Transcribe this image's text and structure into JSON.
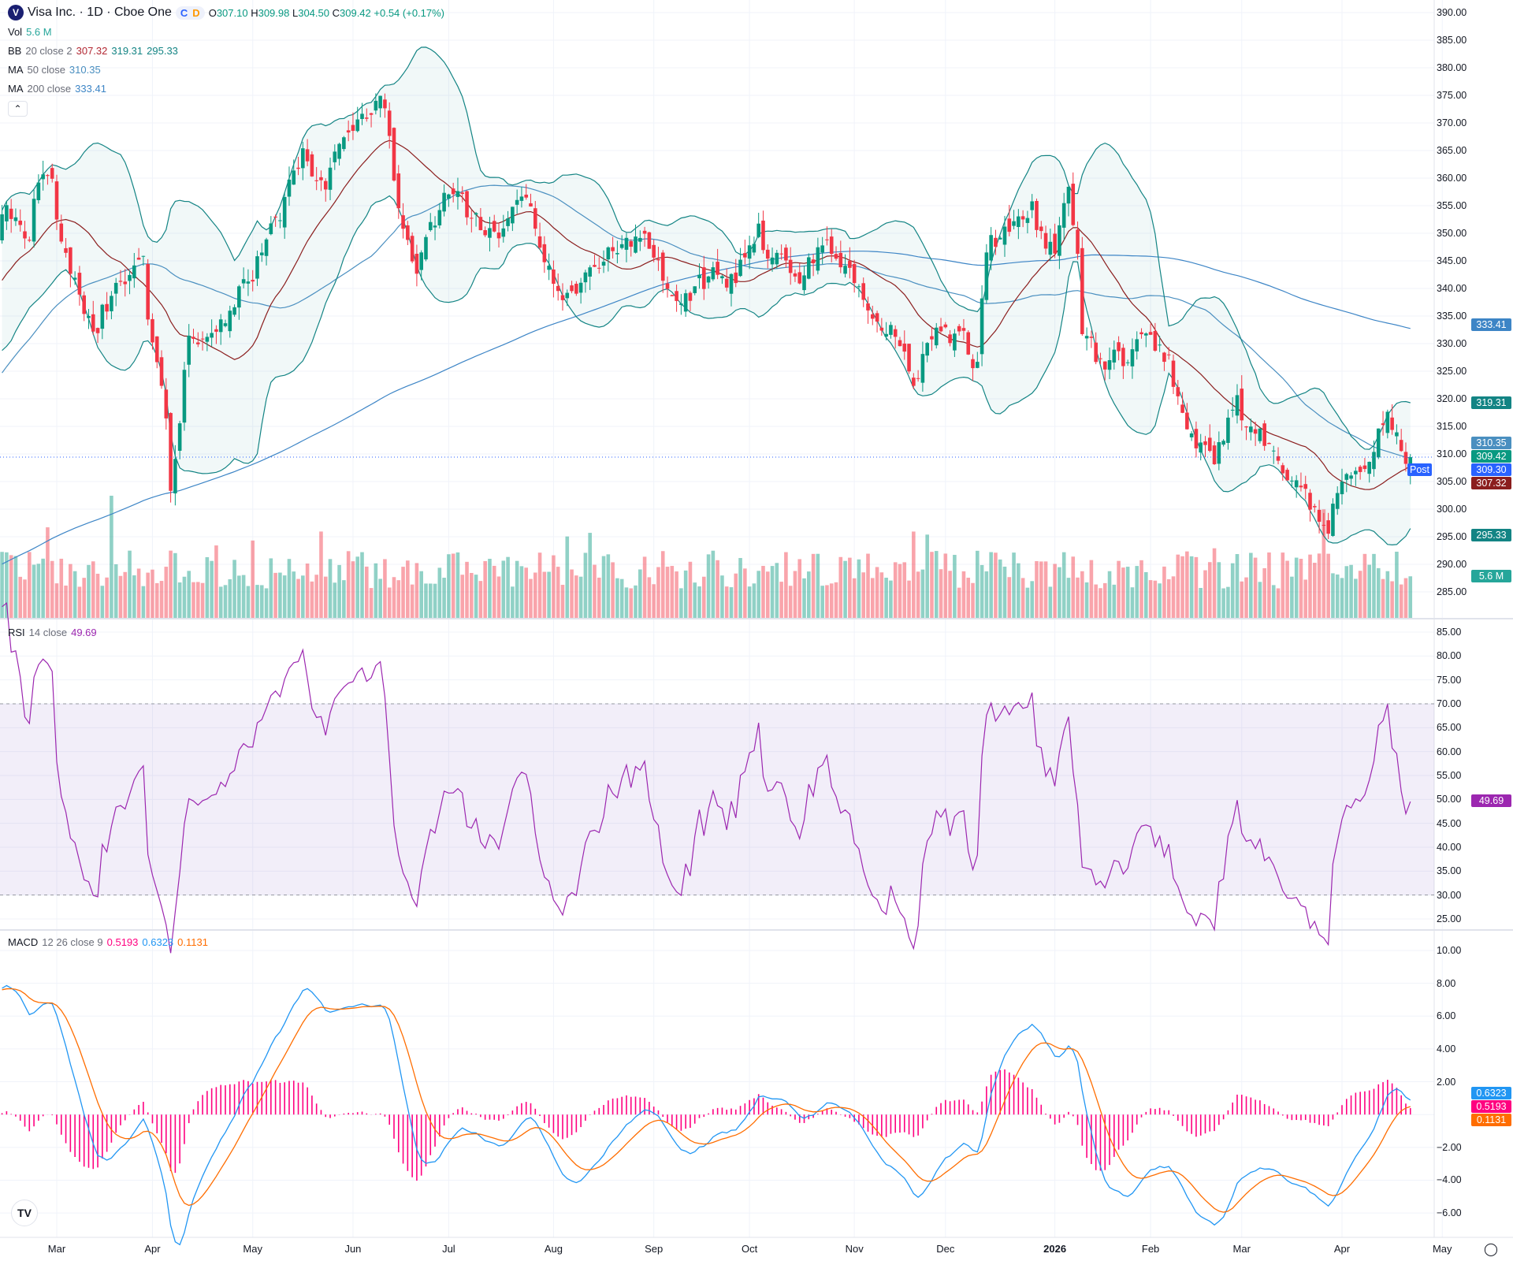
{
  "header": {
    "logo_letter": "V",
    "title": "Visa Inc. · 1D · Cboe One",
    "session_icons": [
      "C",
      "D"
    ],
    "ohlc": {
      "o_label": "O",
      "open": "307.10",
      "h_label": "H",
      "high": "309.98",
      "l_label": "L",
      "low": "304.50",
      "c_label": "C",
      "close": "309.42",
      "change": "+0.54 (+0.17%)"
    }
  },
  "legend": {
    "vol": {
      "name": "Vol",
      "value": "5.6 M"
    },
    "bb": {
      "name": "BB",
      "params": "20 close 2",
      "basis": "307.32",
      "upper": "319.31",
      "lower": "295.33"
    },
    "ma50": {
      "name": "MA",
      "params": "50 close",
      "value": "310.35"
    },
    "ma200": {
      "name": "MA",
      "params": "200 close",
      "value": "333.41"
    },
    "collapse_icon": "chevron-up",
    "rsi": {
      "name": "RSI",
      "params": "14 close",
      "value": "49.69"
    },
    "macd": {
      "name": "MACD",
      "params": "12 26 close 9",
      "hist": "0.5193",
      "macd": "0.6323",
      "signal": "0.1131"
    }
  },
  "axes": {
    "price_ticks": [
      "390.00",
      "385.00",
      "380.00",
      "375.00",
      "370.00",
      "365.00",
      "360.00",
      "355.00",
      "350.00",
      "345.00",
      "340.00",
      "335.00",
      "330.00",
      "325.00",
      "320.00",
      "315.00",
      "310.00",
      "305.00",
      "300.00",
      "295.00",
      "290.00",
      "285.00"
    ],
    "rsi_ticks": [
      "85.00",
      "80.00",
      "75.00",
      "70.00",
      "65.00",
      "60.00",
      "55.00",
      "50.00",
      "45.00",
      "40.00",
      "35.00",
      "30.00",
      "25.00"
    ],
    "macd_ticks": [
      "10.00",
      "8.00",
      "6.00",
      "4.00",
      "2.00",
      "−2.00",
      "−4.00",
      "−6.00"
    ],
    "months": [
      {
        "label": "Mar",
        "date": "2025-03-03"
      },
      {
        "label": "Apr",
        "date": "2025-04-01"
      },
      {
        "label": "May",
        "date": "2025-05-01"
      },
      {
        "label": "Jun",
        "date": "2025-06-02"
      },
      {
        "label": "Jul",
        "date": "2025-07-01"
      },
      {
        "label": "Aug",
        "date": "2025-08-01"
      },
      {
        "label": "Sep",
        "date": "2025-09-02"
      },
      {
        "label": "Oct",
        "date": "2025-10-01"
      },
      {
        "label": "Nov",
        "date": "2025-11-03"
      },
      {
        "label": "Dec",
        "date": "2025-12-01"
      },
      {
        "label": "2026",
        "date": "2026-01-02",
        "bold": true
      },
      {
        "label": "Feb",
        "date": "2026-02-02"
      },
      {
        "label": "Mar",
        "date": "2026-03-02"
      },
      {
        "label": "Apr",
        "date": "2026-04-01"
      },
      {
        "label": "May",
        "date": "2026-05-01"
      }
    ]
  },
  "badges": {
    "ma200": {
      "text": "333.41",
      "color": "#3d85c6"
    },
    "bb_upper": {
      "text": "319.31",
      "color": "#138484"
    },
    "ma50": {
      "text": "310.35",
      "color": "#4a8fc0"
    },
    "last": {
      "text": "309.42",
      "color": "#089981"
    },
    "post_label": "Post",
    "post": {
      "text": "309.30",
      "color": "#2962ff"
    },
    "bb_basis": {
      "text": "307.32",
      "color": "#8b1e1e"
    },
    "bb_lower": {
      "text": "295.33",
      "color": "#138484"
    },
    "vol": {
      "text": "5.6 M",
      "color": "#26a69a"
    },
    "rsi": {
      "text": "49.69",
      "color": "#9c27b0"
    },
    "macd": {
      "text": "0.6323",
      "color": "#2196f3"
    },
    "hist": {
      "text": "0.5193",
      "color": "#ff0080"
    },
    "signal": {
      "text": "0.1131",
      "color": "#ff6d00"
    }
  },
  "colors": {
    "up": "#089981",
    "down": "#f23645",
    "bb": "#138484",
    "bb_basis": "#8b1e1e",
    "ma50": "#4a8fc0",
    "ma200": "#3d85c6",
    "rsi": "#9c27b0",
    "macd": "#2196f3",
    "signal": "#ff6d00",
    "hist": "#ff0080"
  },
  "chart_data": {
    "type": "candlestick",
    "symbol": "Visa Inc.",
    "interval": "1D",
    "ylim": [
      283,
      391
    ],
    "last_bar": {
      "date": "2026-04-22",
      "open": 307.1,
      "high": 309.98,
      "low": 304.5,
      "close": 309.42,
      "volume_m": 5.6
    },
    "approx_closes": [
      [
        "2025-02-14",
        354.7
      ],
      [
        "2025-02-21",
        350
      ],
      [
        "2025-02-28",
        361.7
      ],
      [
        "2025-03-07",
        341.5
      ],
      [
        "2025-03-14",
        331
      ],
      [
        "2025-03-21",
        339.8
      ],
      [
        "2025-03-28",
        345
      ],
      [
        "2025-04-04",
        315
      ],
      [
        "2025-04-07",
        303
      ],
      [
        "2025-04-11",
        331
      ],
      [
        "2025-04-17",
        333
      ],
      [
        "2025-04-25",
        334.5
      ],
      [
        "2025-05-02",
        345
      ],
      [
        "2025-05-09",
        352
      ],
      [
        "2025-05-16",
        366
      ],
      [
        "2025-05-23",
        359
      ],
      [
        "2025-05-30",
        366
      ],
      [
        "2025-06-06",
        370.4
      ],
      [
        "2025-06-11",
        373
      ],
      [
        "2025-06-13",
        359
      ],
      [
        "2025-06-20",
        345
      ],
      [
        "2025-06-27",
        354.7
      ],
      [
        "2025-07-03",
        357
      ],
      [
        "2025-07-11",
        350
      ],
      [
        "2025-07-18",
        351
      ],
      [
        "2025-07-25",
        355.5
      ],
      [
        "2025-08-01",
        343
      ],
      [
        "2025-08-08",
        336
      ],
      [
        "2025-08-15",
        345
      ],
      [
        "2025-08-22",
        349.5
      ],
      [
        "2025-08-29",
        350
      ],
      [
        "2025-09-05",
        341.5
      ],
      [
        "2025-09-12",
        340
      ],
      [
        "2025-09-19",
        341.5
      ],
      [
        "2025-09-26",
        341.5
      ],
      [
        "2025-10-03",
        352
      ],
      [
        "2025-10-10",
        345
      ],
      [
        "2025-10-17",
        342
      ],
      [
        "2025-10-24",
        348.5
      ],
      [
        "2025-10-31",
        341.5
      ],
      [
        "2025-11-07",
        336
      ],
      [
        "2025-11-14",
        333
      ],
      [
        "2025-11-21",
        323
      ],
      [
        "2025-11-28",
        333
      ],
      [
        "2025-12-05",
        329.5
      ],
      [
        "2025-12-10",
        326
      ],
      [
        "2025-12-12",
        347
      ],
      [
        "2025-12-19",
        350
      ],
      [
        "2025-12-26",
        354.7
      ],
      [
        "2026-01-02",
        346
      ],
      [
        "2026-01-07",
        355.5
      ],
      [
        "2026-01-12",
        331
      ],
      [
        "2026-01-16",
        326
      ],
      [
        "2026-01-23",
        327
      ],
      [
        "2026-01-30",
        331
      ],
      [
        "2026-02-06",
        327.5
      ],
      [
        "2026-02-13",
        315
      ],
      [
        "2026-02-20",
        310
      ],
      [
        "2026-02-27",
        319
      ],
      [
        "2026-03-06",
        313.5
      ],
      [
        "2026-03-13",
        306.5
      ],
      [
        "2026-03-20",
        301
      ],
      [
        "2026-03-27",
        297.8
      ],
      [
        "2026-04-02",
        304
      ],
      [
        "2026-04-09",
        310
      ],
      [
        "2026-04-15",
        317
      ],
      [
        "2026-04-20",
        310
      ],
      [
        "2026-04-22",
        309.42
      ]
    ],
    "indicators": [
      "Volume",
      "Bollinger Bands 20 2",
      "MA 50",
      "MA 200",
      "RSI 14",
      "MACD 12 26 9"
    ],
    "rsi_bands": [
      70,
      30
    ],
    "rsi_ylim": [
      25,
      85
    ],
    "macd_ylim": [
      -6.5,
      10.5
    ],
    "grid": true
  }
}
